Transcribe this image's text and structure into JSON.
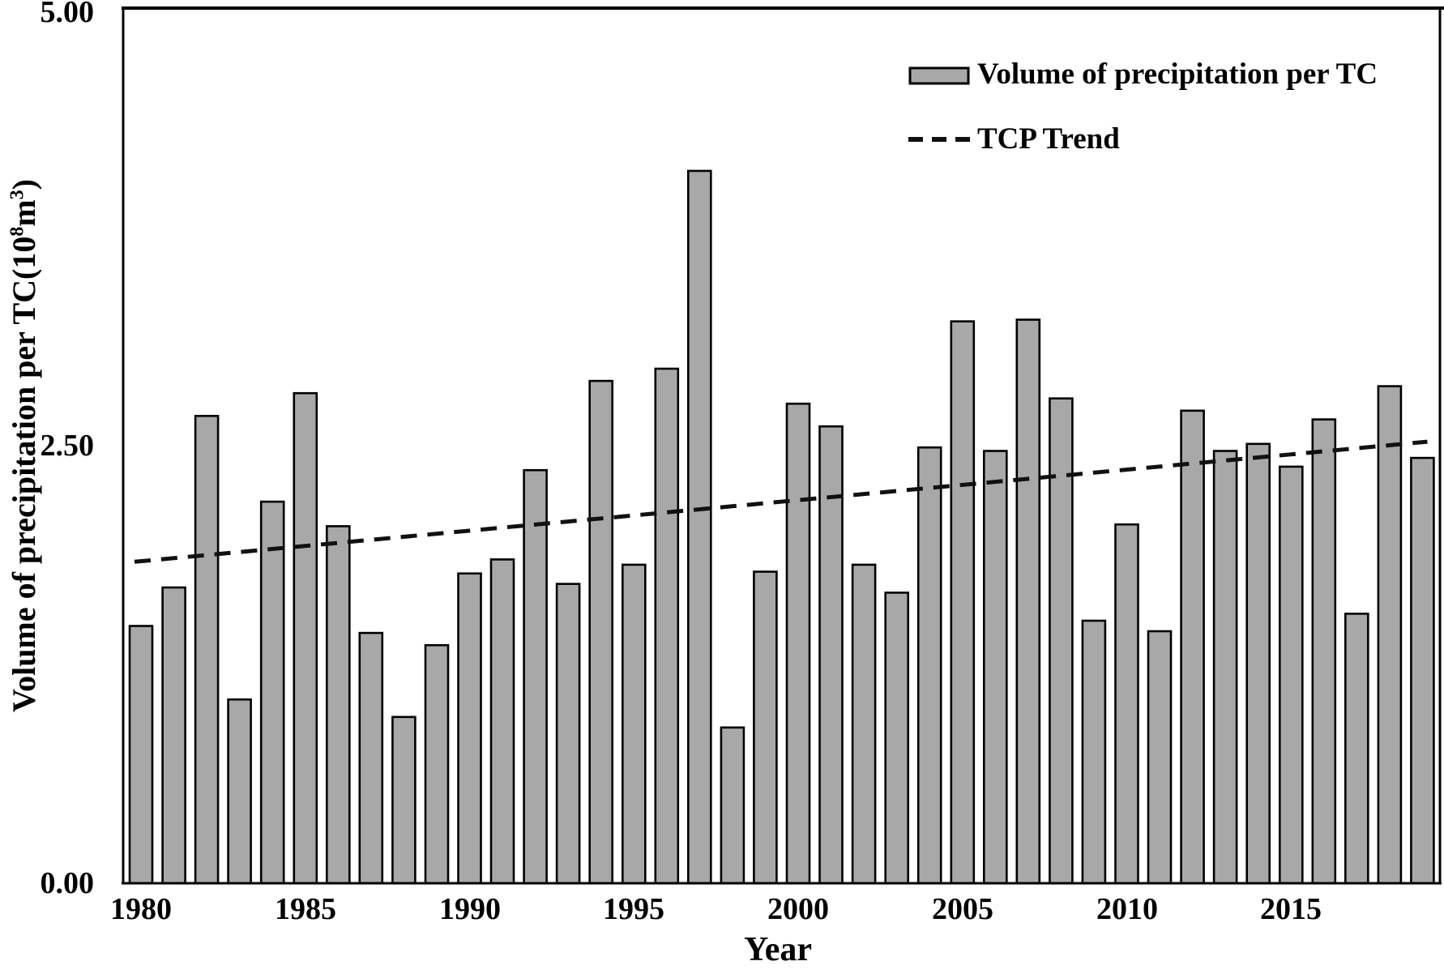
{
  "figure": {
    "y_axis": {
      "title_parts": {
        "prefix": "Volume of precipitation per TC(10",
        "sup1": "8",
        "mid": "m",
        "sup2": "3",
        "suffix": ")"
      },
      "ticks": [
        "5.00",
        "2.50",
        "0.00"
      ]
    },
    "x_axis": {
      "title": "Year",
      "ticks": [
        "1980",
        "1985",
        "1990",
        "1995",
        "2000",
        "2005",
        "2010",
        "2015"
      ]
    },
    "legend": [
      {
        "label": "Volume of precipitation per TC",
        "swatch": "bar"
      },
      {
        "label": "TCP Trend",
        "swatch": "dashed-line"
      }
    ]
  },
  "chart_data": {
    "type": "bar",
    "title": "",
    "xlabel": "Year",
    "ylabel": "Volume of precipitation per TC(10⁸m³)",
    "ylim": [
      0,
      5
    ],
    "yticks": [
      0.0,
      2.5,
      5.0
    ],
    "xticks": [
      1980,
      1985,
      1990,
      1995,
      2000,
      2005,
      2010,
      2015
    ],
    "grid": false,
    "legend_position": "upper right",
    "x": [
      1980,
      1981,
      1982,
      1983,
      1984,
      1985,
      1986,
      1987,
      1988,
      1989,
      1990,
      1991,
      1992,
      1993,
      1994,
      1995,
      1996,
      1997,
      1998,
      1999,
      2000,
      2001,
      2002,
      2003,
      2004,
      2005,
      2006,
      2007,
      2008,
      2009,
      2010,
      2011,
      2012,
      2013,
      2014,
      2015,
      2016,
      2017,
      2018,
      2019
    ],
    "series": [
      {
        "name": "Volume of precipitation per TC",
        "type": "bar",
        "color": "#a8a8a8",
        "edge_color": "#000000",
        "values": [
          1.47,
          1.69,
          2.67,
          1.05,
          2.18,
          2.8,
          2.04,
          1.43,
          0.95,
          1.36,
          1.77,
          1.85,
          2.36,
          1.71,
          2.87,
          1.82,
          2.94,
          4.07,
          0.89,
          1.78,
          2.74,
          2.61,
          1.82,
          1.66,
          2.49,
          3.21,
          2.47,
          3.22,
          2.77,
          1.5,
          2.05,
          1.44,
          2.7,
          2.47,
          2.51,
          2.38,
          2.65,
          1.54,
          2.84,
          2.43
        ]
      },
      {
        "name": "TCP Trend",
        "type": "dashed-line",
        "color": "#111111",
        "points": [
          {
            "x": 1980,
            "y": 1.84
          },
          {
            "x": 2019,
            "y": 2.52
          }
        ]
      }
    ]
  },
  "colors": {
    "background": "#ffffff",
    "bar_fill": "#a8a8a8",
    "stroke": "#000000",
    "text": "#000000"
  }
}
